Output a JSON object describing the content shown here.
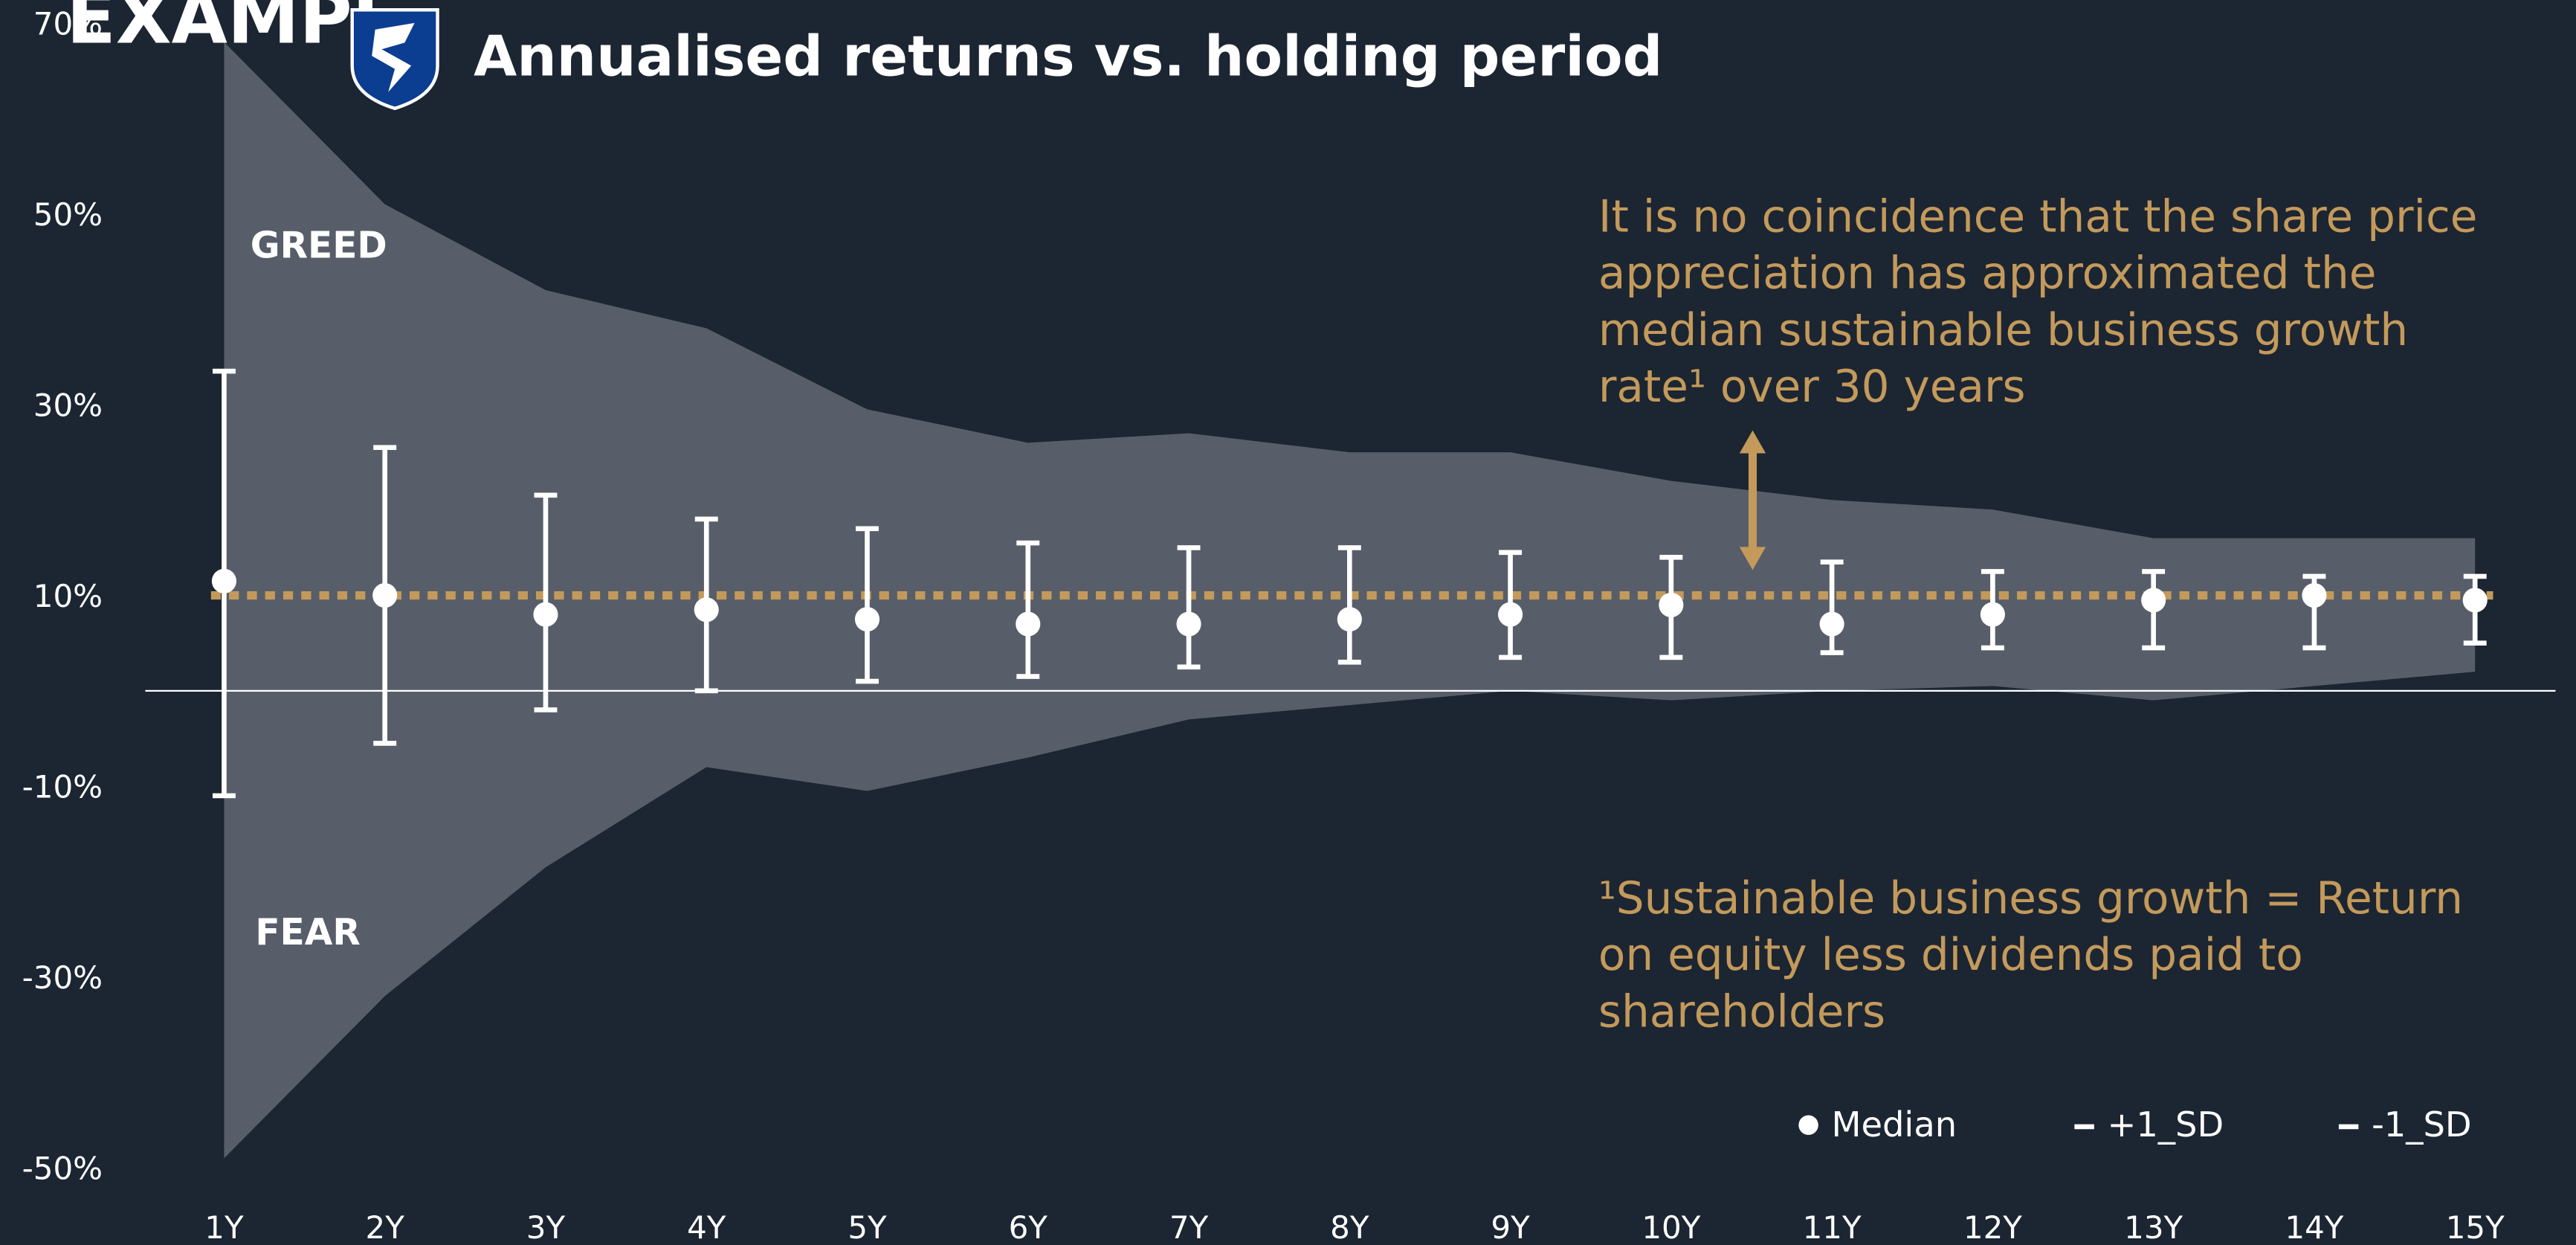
{
  "watermark": "EXAMPL",
  "chart_data": {
    "type": "errorbar",
    "title": "Annualised returns vs. holding period",
    "categories": [
      "1Y",
      "2Y",
      "3Y",
      "4Y",
      "5Y",
      "6Y",
      "7Y",
      "8Y",
      "9Y",
      "10Y",
      "11Y",
      "12Y",
      "13Y",
      "14Y",
      "15Y"
    ],
    "series": [
      {
        "name": "Median",
        "color": "#ffffff",
        "values": [
          11.5,
          10,
          8,
          8.5,
          7.5,
          7,
          7,
          7.5,
          8,
          9,
          7,
          8,
          9.5,
          10,
          9.5
        ]
      },
      {
        "name": "+1_SD",
        "color": "#ffffff",
        "values": [
          33.5,
          25.5,
          20.5,
          18,
          17,
          15.5,
          15,
          15,
          14.5,
          14,
          13.5,
          12.5,
          12.5,
          12,
          12
        ]
      },
      {
        "name": "-1_SD",
        "color": "#ffffff",
        "values": [
          -11,
          -5.5,
          -2,
          0,
          1,
          1.5,
          2.5,
          3,
          3.5,
          3.5,
          4,
          4.5,
          4.5,
          4.5,
          5
        ]
      }
    ],
    "band": {
      "color": "#575e69",
      "upper": [
        68,
        51,
        42,
        38,
        29.5,
        26,
        27,
        25,
        25,
        22,
        20,
        19,
        16,
        16,
        16
      ],
      "lower": [
        -49,
        -32,
        -18.5,
        -8,
        -10.5,
        -7,
        -3,
        -1.5,
        0,
        -1,
        0,
        0.5,
        -1,
        0.5,
        2
      ]
    },
    "reference_line": {
      "value": 10,
      "color": "#c39a5b"
    },
    "ylim": [
      -50,
      70
    ],
    "yticks": [
      {
        "value": 70,
        "label": "70%"
      },
      {
        "value": 50,
        "label": "50%"
      },
      {
        "value": 30,
        "label": "30%"
      },
      {
        "value": 10,
        "label": "10%"
      },
      {
        "value": -10,
        "label": "-10%"
      },
      {
        "value": -30,
        "label": "-30%"
      },
      {
        "value": -50,
        "label": "-50%"
      }
    ],
    "annotations": {
      "greed": "GREED",
      "fear": "FEAR",
      "note": [
        "It is no coincidence that the share price",
        "appreciation has approximated the",
        "median sustainable business growth",
        "rate¹ over 30 years"
      ],
      "footnote": [
        "¹Sustainable business growth = Return",
        "on equity less dividends paid to",
        "shareholders"
      ]
    },
    "legend": "bottom-right"
  }
}
